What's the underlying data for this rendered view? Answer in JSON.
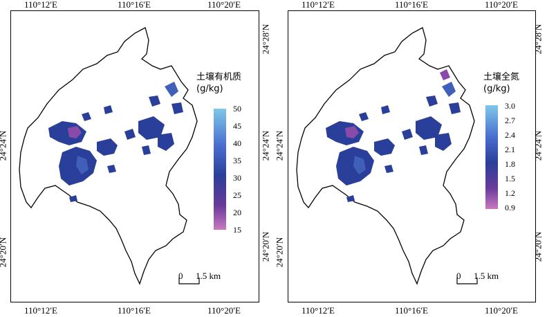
{
  "maps": [
    {
      "legend_title_line1": "土壤有机质",
      "legend_title_line2": "(g/kg)",
      "legend_ticks": [
        "50",
        "45",
        "40",
        "35",
        "30",
        "25",
        "20",
        "15"
      ],
      "legend_min": 15,
      "legend_max": 50,
      "top_labels": [
        "110°12′E",
        "110°16′E",
        "110°20′E"
      ],
      "bottom_labels": [
        "110°12′E",
        "110°16′E",
        "110°20′E"
      ],
      "left_labels": [
        "24°24′N",
        "24°20′N"
      ],
      "right_labels": [
        "24°28′N",
        "24°24′N",
        "24°20′N"
      ],
      "scale_zero": "0",
      "scale_text": "1.5 km"
    },
    {
      "legend_title_line1": "土壤全氮",
      "legend_title_line2": "(g/kg)",
      "legend_ticks": [
        "3.0",
        "2.7",
        "2.4",
        "2.1",
        "1.8",
        "1.5",
        "1.2",
        "0.9"
      ],
      "legend_min": 0.9,
      "legend_max": 3.0,
      "top_labels": [
        "110°12′E",
        "110°16′E",
        "110°20′E"
      ],
      "bottom_labels": [
        "110°12′E",
        "110°16′E",
        "110°20′E"
      ],
      "left_labels": [
        "24°24′N",
        "24°20′N"
      ],
      "right_labels": [
        "24°28′N",
        "24°24′N",
        "24°20′N"
      ],
      "scale_zero": "0",
      "scale_text": "1.5 km"
    }
  ],
  "colors": {
    "legend_top": "#7ec8e8",
    "legend_mid_high": "#4a6fd0",
    "legend_mid": "#2a3f9a",
    "legend_low": "#6a3a9a",
    "legend_bottom": "#c87ac0",
    "patch_dark": "#27408f",
    "patch_mid": "#3f5fb8",
    "patch_hot": "#8a4aa8"
  }
}
